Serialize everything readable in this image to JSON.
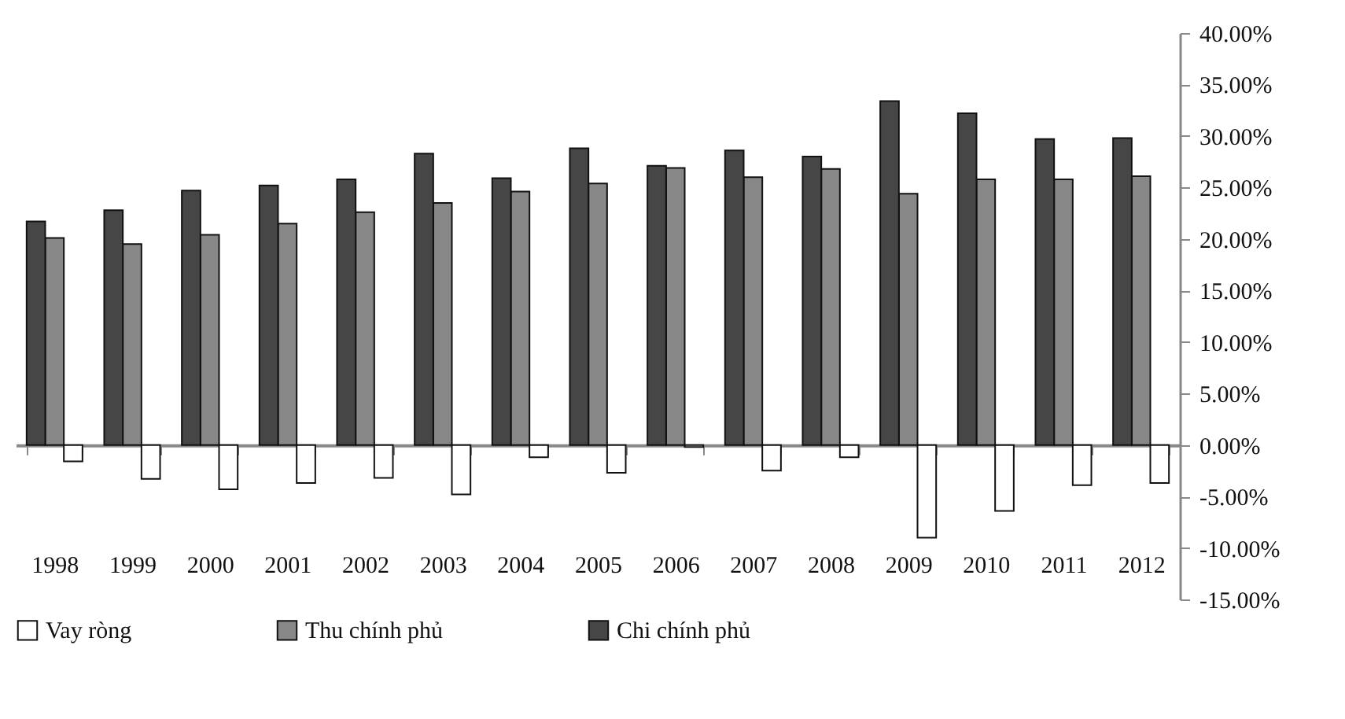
{
  "chart_data": {
    "type": "bar",
    "categories": [
      "1998",
      "1999",
      "2000",
      "2001",
      "2002",
      "2003",
      "2004",
      "2005",
      "2006",
      "2007",
      "2008",
      "2009",
      "2010",
      "2011",
      "2012"
    ],
    "series": [
      {
        "name": "Vay ròng",
        "color": "#ffffff",
        "values": [
          -1.6,
          -3.3,
          -4.3,
          -3.7,
          -3.2,
          -4.8,
          -1.2,
          -2.7,
          -0.2,
          -2.5,
          -1.2,
          -9.0,
          -6.4,
          -3.9,
          -3.7
        ]
      },
      {
        "name": "Thu chính phủ",
        "color": "#878787",
        "values": [
          20.1,
          19.5,
          20.4,
          21.5,
          22.6,
          23.5,
          24.6,
          25.4,
          26.9,
          26.0,
          26.8,
          24.4,
          25.8,
          25.8,
          26.1
        ]
      },
      {
        "name": "Chi chính phủ",
        "color": "#464646",
        "values": [
          21.7,
          22.8,
          24.7,
          25.2,
          25.8,
          28.3,
          25.9,
          28.8,
          27.1,
          28.6,
          28.0,
          33.4,
          32.2,
          29.7,
          29.8
        ]
      }
    ],
    "ylim": [
      -15,
      40
    ],
    "yticks": [
      {
        "value": -15,
        "label": "-15.00%"
      },
      {
        "value": -10,
        "label": "-10.00%"
      },
      {
        "value": -5,
        "label": "-5.00%"
      },
      {
        "value": 0,
        "label": "0.00%"
      },
      {
        "value": 5,
        "label": "5.00%"
      },
      {
        "value": 10,
        "label": "10.00%"
      },
      {
        "value": 15,
        "label": "15.00%"
      },
      {
        "value": 20,
        "label": "20.00%"
      },
      {
        "value": 25,
        "label": "25.00%"
      },
      {
        "value": 30,
        "label": "30.00%"
      },
      {
        "value": 35,
        "label": "35.00%"
      },
      {
        "value": 40,
        "label": "40.00%"
      }
    ],
    "legend": "bottom"
  }
}
